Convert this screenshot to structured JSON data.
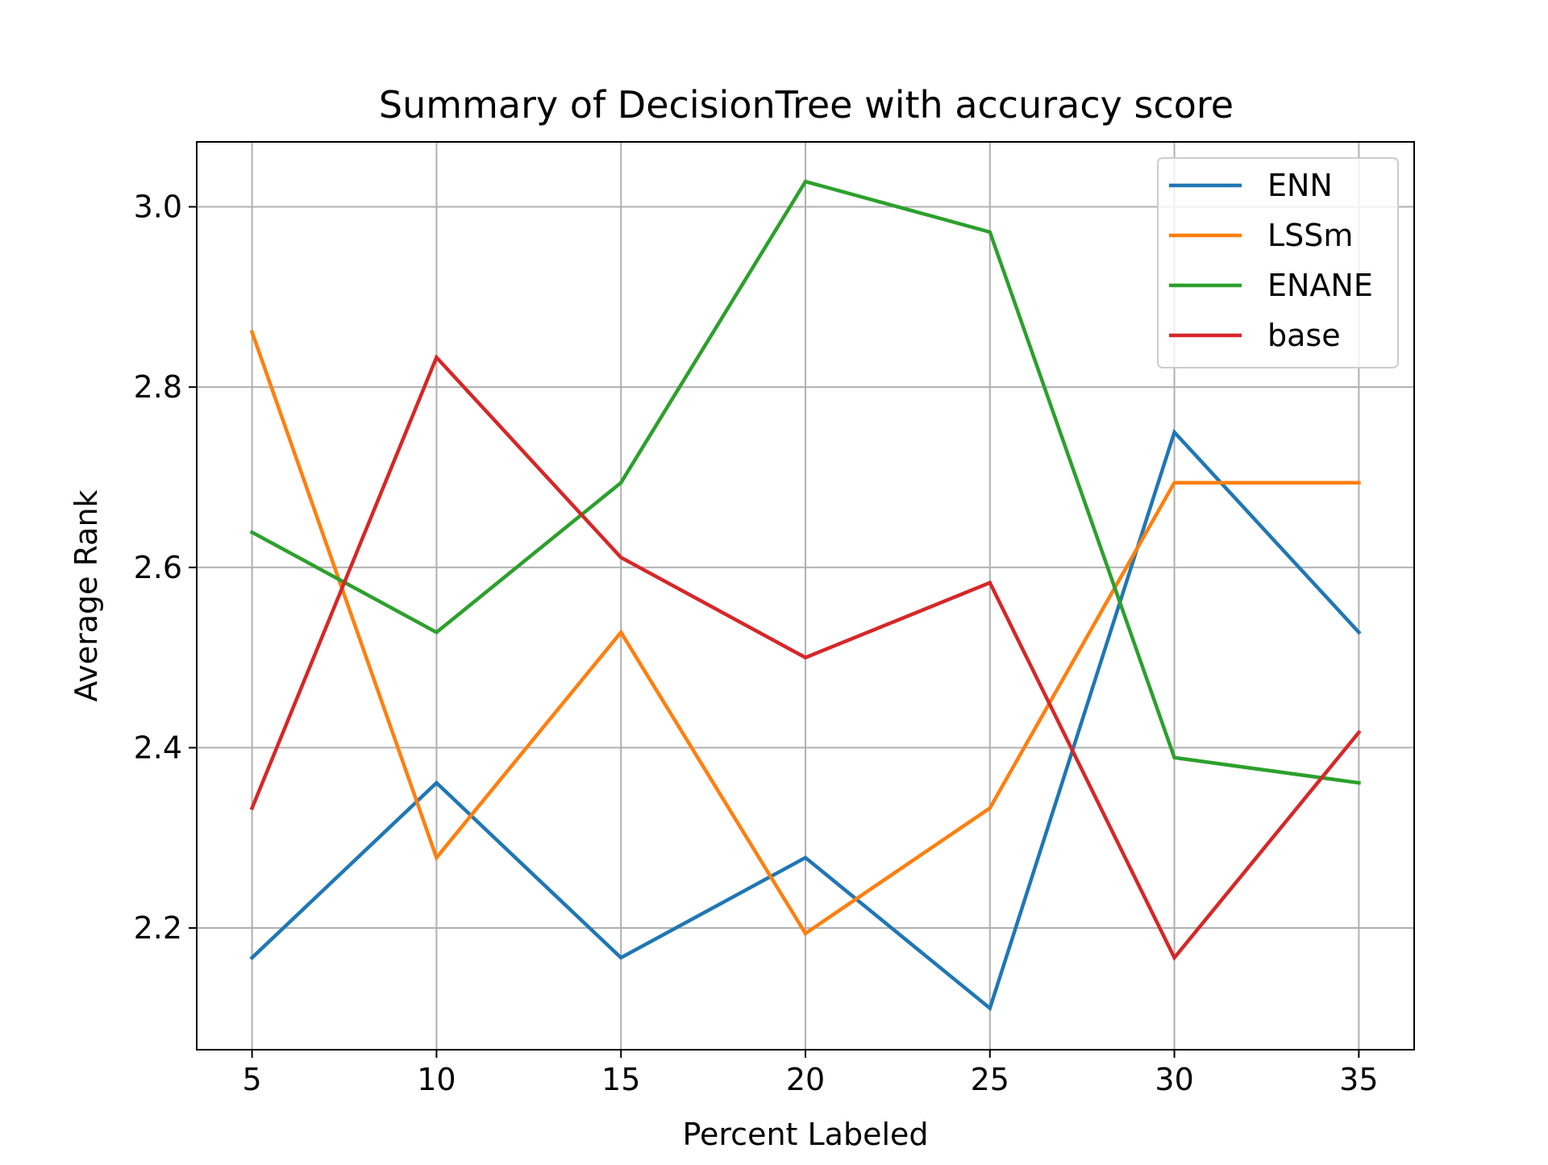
{
  "chart_data": {
    "type": "line",
    "title": "Summary of DecisionTree with accuracy score",
    "xlabel": "Percent Labeled",
    "ylabel": "Average Rank",
    "x": [
      5,
      10,
      15,
      20,
      25,
      30,
      35
    ],
    "xlim": [
      3.5,
      36.5
    ],
    "ylim": [
      2.065,
      3.072
    ],
    "xticks": [
      5,
      10,
      15,
      20,
      25,
      30,
      35
    ],
    "xtick_labels": [
      "5",
      "10",
      "15",
      "20",
      "25",
      "30",
      "35"
    ],
    "yticks": [
      2.2,
      2.4,
      2.6,
      2.8,
      3.0
    ],
    "ytick_labels": [
      "2.2",
      "2.4",
      "2.6",
      "2.8",
      "3.0"
    ],
    "grid": true,
    "legend_position": "top-right",
    "series": [
      {
        "name": "ENN",
        "color": "#1f77b4",
        "values": [
          2.167,
          2.361,
          2.167,
          2.278,
          2.111,
          2.75,
          2.528
        ]
      },
      {
        "name": "LSSm",
        "color": "#ff7f0e",
        "values": [
          2.861,
          2.278,
          2.528,
          2.194,
          2.333,
          2.694,
          2.694
        ]
      },
      {
        "name": "ENANE",
        "color": "#2ca02c",
        "values": [
          2.639,
          2.528,
          2.694,
          3.028,
          2.972,
          2.389,
          2.361
        ]
      },
      {
        "name": "base",
        "color": "#d62728",
        "values": [
          2.333,
          2.833,
          2.611,
          2.5,
          2.583,
          2.167,
          2.417
        ]
      }
    ]
  }
}
